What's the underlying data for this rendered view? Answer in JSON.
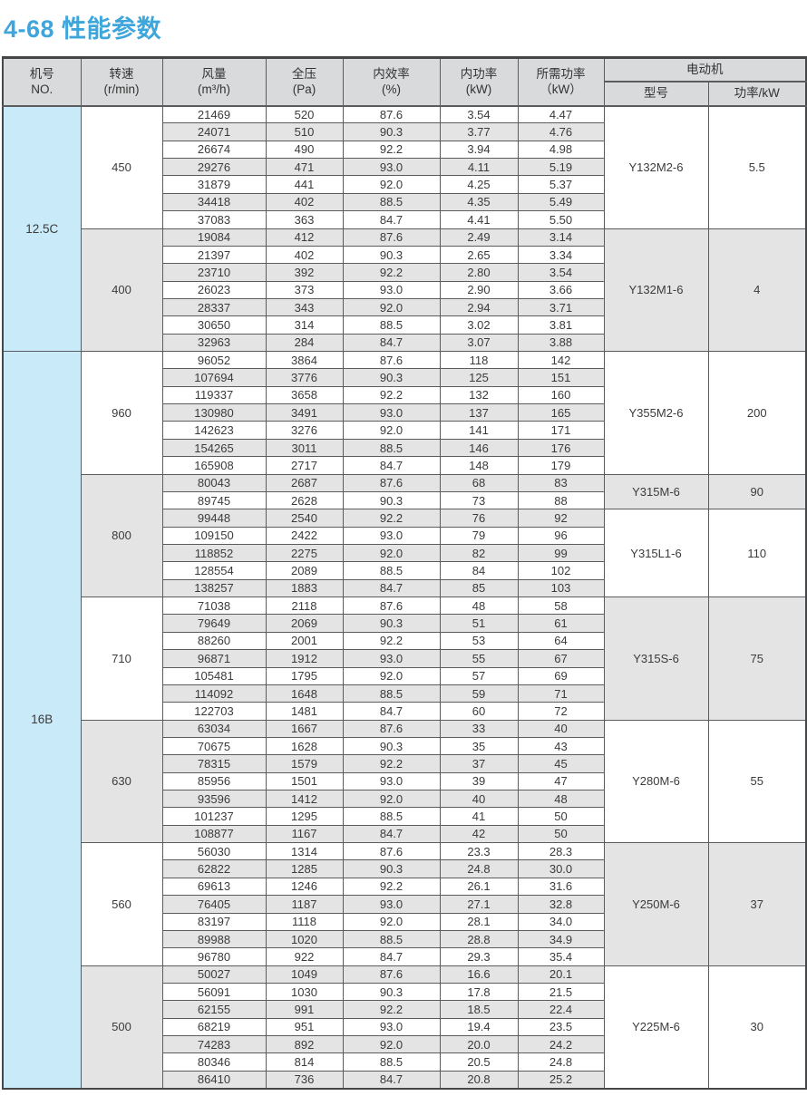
{
  "title": "4-68 性能参数",
  "colors": {
    "accent": "#3FA6DC",
    "machine_cell_bg": "#C9EAF8",
    "stripe_bg": "#E4E4E4",
    "header_bg": "#D9DADB",
    "border": "#5B5C5E"
  },
  "table": {
    "headers": {
      "machine_no": "机号\nNO.",
      "speed": "转速\n(r/min)",
      "flow": "风量\n(m³/h)",
      "pressure": "全压\n(Pa)",
      "efficiency": "内效率\n(%)",
      "power": "内功率\n(kW)",
      "required_power": "所需功率\n（kW）",
      "motor": "电动机",
      "motor_model": "型号",
      "motor_power": "功率/kW"
    },
    "machines": [
      {
        "no": "12.5C",
        "groups": [
          {
            "speed": "450",
            "rows": [
              [
                "21469",
                "520",
                "87.6",
                "3.54",
                "4.47"
              ],
              [
                "24071",
                "510",
                "90.3",
                "3.77",
                "4.76"
              ],
              [
                "26674",
                "490",
                "92.2",
                "3.94",
                "4.98"
              ],
              [
                "29276",
                "471",
                "93.0",
                "4.11",
                "5.19"
              ],
              [
                "31879",
                "441",
                "92.0",
                "4.25",
                "5.37"
              ],
              [
                "34418",
                "402",
                "88.5",
                "4.35",
                "5.49"
              ],
              [
                "37083",
                "363",
                "84.7",
                "4.41",
                "5.50"
              ]
            ],
            "motors": [
              {
                "model": "Y132M2-6",
                "power": "5.5",
                "rows": 7
              }
            ]
          },
          {
            "speed": "400",
            "rows": [
              [
                "19084",
                "412",
                "87.6",
                "2.49",
                "3.14"
              ],
              [
                "21397",
                "402",
                "90.3",
                "2.65",
                "3.34"
              ],
              [
                "23710",
                "392",
                "92.2",
                "2.80",
                "3.54"
              ],
              [
                "26023",
                "373",
                "93.0",
                "2.90",
                "3.66"
              ],
              [
                "28337",
                "343",
                "92.0",
                "2.94",
                "3.71"
              ],
              [
                "30650",
                "314",
                "88.5",
                "3.02",
                "3.81"
              ],
              [
                "32963",
                "284",
                "84.7",
                "3.07",
                "3.88"
              ]
            ],
            "motors": [
              {
                "model": "Y132M1-6",
                "power": "4",
                "rows": 7
              }
            ]
          }
        ]
      },
      {
        "no": "16B",
        "groups": [
          {
            "speed": "960",
            "rows": [
              [
                "96052",
                "3864",
                "87.6",
                "118",
                "142"
              ],
              [
                "107694",
                "3776",
                "90.3",
                "125",
                "151"
              ],
              [
                "119337",
                "3658",
                "92.2",
                "132",
                "160"
              ],
              [
                "130980",
                "3491",
                "93.0",
                "137",
                "165"
              ],
              [
                "142623",
                "3276",
                "92.0",
                "141",
                "171"
              ],
              [
                "154265",
                "3011",
                "88.5",
                "146",
                "176"
              ],
              [
                "165908",
                "2717",
                "84.7",
                "148",
                "179"
              ]
            ],
            "motors": [
              {
                "model": "Y355M2-6",
                "power": "200",
                "rows": 7
              }
            ]
          },
          {
            "speed": "800",
            "rows": [
              [
                "80043",
                "2687",
                "87.6",
                "68",
                "83"
              ],
              [
                "89745",
                "2628",
                "90.3",
                "73",
                "88"
              ],
              [
                "99448",
                "2540",
                "92.2",
                "76",
                "92"
              ],
              [
                "109150",
                "2422",
                "93.0",
                "79",
                "96"
              ],
              [
                "118852",
                "2275",
                "92.0",
                "82",
                "99"
              ],
              [
                "128554",
                "2089",
                "88.5",
                "84",
                "102"
              ],
              [
                "138257",
                "1883",
                "84.7",
                "85",
                "103"
              ]
            ],
            "motors": [
              {
                "model": "Y315M-6",
                "power": "90",
                "rows": 2
              },
              {
                "model": "Y315L1-6",
                "power": "110",
                "rows": 5
              }
            ]
          },
          {
            "speed": "710",
            "rows": [
              [
                "71038",
                "2118",
                "87.6",
                "48",
                "58"
              ],
              [
                "79649",
                "2069",
                "90.3",
                "51",
                "61"
              ],
              [
                "88260",
                "2001",
                "92.2",
                "53",
                "64"
              ],
              [
                "96871",
                "1912",
                "93.0",
                "55",
                "67"
              ],
              [
                "105481",
                "1795",
                "92.0",
                "57",
                "69"
              ],
              [
                "114092",
                "1648",
                "88.5",
                "59",
                "71"
              ],
              [
                "122703",
                "1481",
                "84.7",
                "60",
                "72"
              ]
            ],
            "motors": [
              {
                "model": "Y315S-6",
                "power": "75",
                "rows": 7
              }
            ]
          },
          {
            "speed": "630",
            "rows": [
              [
                "63034",
                "1667",
                "87.6",
                "33",
                "40"
              ],
              [
                "70675",
                "1628",
                "90.3",
                "35",
                "43"
              ],
              [
                "78315",
                "1579",
                "92.2",
                "37",
                "45"
              ],
              [
                "85956",
                "1501",
                "93.0",
                "39",
                "47"
              ],
              [
                "93596",
                "1412",
                "92.0",
                "40",
                "48"
              ],
              [
                "101237",
                "1295",
                "88.5",
                "41",
                "50"
              ],
              [
                "108877",
                "1167",
                "84.7",
                "42",
                "50"
              ]
            ],
            "motors": [
              {
                "model": "Y280M-6",
                "power": "55",
                "rows": 7
              }
            ]
          },
          {
            "speed": "560",
            "rows": [
              [
                "56030",
                "1314",
                "87.6",
                "23.3",
                "28.3"
              ],
              [
                "62822",
                "1285",
                "90.3",
                "24.8",
                "30.0"
              ],
              [
                "69613",
                "1246",
                "92.2",
                "26.1",
                "31.6"
              ],
              [
                "76405",
                "1187",
                "93.0",
                "27.1",
                "32.8"
              ],
              [
                "83197",
                "1118",
                "92.0",
                "28.1",
                "34.0"
              ],
              [
                "89988",
                "1020",
                "88.5",
                "28.8",
                "34.9"
              ],
              [
                "96780",
                "922",
                "84.7",
                "29.3",
                "35.4"
              ]
            ],
            "motors": [
              {
                "model": "Y250M-6",
                "power": "37",
                "rows": 7
              }
            ]
          },
          {
            "speed": "500",
            "rows": [
              [
                "50027",
                "1049",
                "87.6",
                "16.6",
                "20.1"
              ],
              [
                "56091",
                "1030",
                "90.3",
                "17.8",
                "21.5"
              ],
              [
                "62155",
                "991",
                "92.2",
                "18.5",
                "22.4"
              ],
              [
                "68219",
                "951",
                "93.0",
                "19.4",
                "23.5"
              ],
              [
                "74283",
                "892",
                "92.0",
                "20.0",
                "24.2"
              ],
              [
                "80346",
                "814",
                "88.5",
                "20.5",
                "24.8"
              ],
              [
                "86410",
                "736",
                "84.7",
                "20.8",
                "25.2"
              ]
            ],
            "motors": [
              {
                "model": "Y225M-6",
                "power": "30",
                "rows": 7
              }
            ]
          }
        ]
      }
    ]
  }
}
